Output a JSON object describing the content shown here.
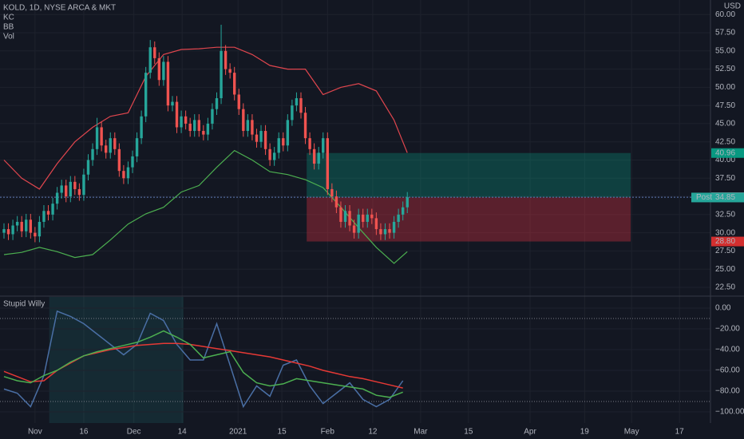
{
  "chart_data": [
    {
      "type": "candlestick",
      "title": "KOLD, 1D, NYSE ARCA & MKT",
      "indicators": [
        "KC",
        "BB",
        "Vol"
      ],
      "currency": "USD",
      "up_color": "#26a69a",
      "down_color": "#ef5350",
      "open": [
        30.0,
        30.5,
        29.8,
        31.0,
        31.5,
        30.2,
        31.8,
        30.0,
        29.5,
        31.5,
        33.0,
        32.5,
        34.0,
        35.5,
        36.5,
        35.0,
        37.0,
        36.0,
        35.2,
        38.0,
        40.0,
        41.5,
        44.5,
        42.0,
        41.0,
        43.0,
        41.5,
        38.5,
        37.5,
        39.0,
        40.5,
        43.0,
        46.0,
        52.0,
        55.5,
        54.0,
        51.0,
        53.5,
        47.5,
        48.0,
        44.5,
        46.0,
        45.0,
        44.0,
        45.5,
        44.0,
        43.5,
        45.0,
        47.0,
        48.5,
        55.0,
        52.5,
        52.0,
        49.0,
        47.0,
        44.0,
        45.5,
        43.5,
        42.5,
        44.0,
        41.5,
        40.0,
        41.0,
        43.0,
        42.0,
        45.5,
        47.5,
        48.5,
        46.5,
        43.0,
        41.5,
        39.5,
        41.0,
        43.0,
        36.0,
        35.0,
        33.5,
        31.5,
        33.0,
        31.0,
        30.0,
        32.5,
        31.5,
        32.5,
        32.0,
        30.5,
        29.8,
        30.5,
        30.0,
        31.5,
        32.5,
        33.5
      ],
      "high": [
        31.3,
        31.3,
        31.8,
        32.3,
        32.3,
        32.6,
        32.6,
        30.8,
        32.3,
        33.8,
        33.8,
        34.8,
        36.3,
        37.3,
        37.3,
        37.8,
        37.8,
        36.8,
        38.8,
        40.8,
        42.3,
        45.8,
        45.3,
        42.8,
        43.8,
        43.8,
        42.3,
        39.3,
        39.8,
        41.3,
        43.8,
        46.8,
        52.8,
        56.5,
        56.3,
        54.8,
        54.3,
        54.3,
        48.8,
        48.8,
        46.8,
        46.8,
        45.8,
        46.3,
        46.3,
        44.8,
        45.8,
        47.8,
        49.3,
        58.6,
        55.8,
        53.3,
        52.8,
        49.8,
        47.8,
        46.3,
        46.3,
        44.3,
        44.8,
        44.8,
        42.3,
        41.8,
        43.8,
        43.8,
        46.3,
        48.3,
        49.3,
        49.3,
        47.3,
        43.8,
        42.3,
        41.8,
        43.8,
        43.8,
        36.8,
        35.8,
        34.3,
        33.8,
        33.8,
        31.8,
        33.3,
        33.3,
        33.3,
        33.3,
        32.8,
        31.3,
        31.3,
        31.3,
        32.3,
        33.3,
        34.3,
        35.6
      ],
      "low": [
        29.2,
        29.0,
        29.0,
        30.2,
        29.4,
        29.4,
        29.2,
        28.7,
        28.7,
        30.7,
        31.7,
        31.7,
        33.2,
        34.7,
        34.2,
        34.2,
        35.2,
        34.4,
        34.4,
        37.2,
        39.2,
        40.7,
        41.2,
        40.2,
        40.2,
        40.7,
        37.7,
        36.7,
        36.7,
        38.2,
        39.7,
        42.2,
        45.2,
        51.2,
        53.2,
        50.2,
        50.2,
        46.7,
        46.7,
        43.7,
        43.7,
        44.2,
        43.2,
        43.2,
        43.2,
        42.7,
        42.7,
        44.2,
        46.2,
        47.7,
        51.7,
        51.2,
        48.2,
        46.2,
        43.2,
        43.2,
        42.7,
        41.7,
        41.7,
        40.7,
        39.2,
        39.2,
        40.2,
        41.2,
        41.2,
        44.7,
        46.7,
        45.7,
        42.2,
        40.7,
        38.7,
        38.7,
        40.2,
        35.2,
        34.2,
        32.7,
        30.7,
        30.7,
        30.2,
        29.2,
        29.2,
        30.7,
        30.7,
        31.2,
        29.7,
        29.0,
        29.0,
        29.2,
        29.2,
        30.7,
        31.7,
        32.7
      ],
      "close": [
        30.5,
        29.8,
        31.0,
        31.5,
        30.2,
        31.8,
        30.0,
        29.5,
        31.5,
        33.0,
        32.5,
        34.0,
        35.5,
        36.5,
        35.0,
        37.0,
        36.0,
        35.2,
        38.0,
        40.0,
        41.5,
        44.5,
        42.0,
        41.0,
        43.0,
        41.5,
        38.5,
        37.5,
        39.0,
        40.5,
        43.0,
        46.0,
        52.0,
        55.5,
        54.0,
        51.0,
        53.5,
        47.5,
        48.0,
        44.5,
        46.0,
        45.0,
        44.0,
        45.5,
        44.0,
        43.5,
        45.0,
        47.0,
        48.5,
        55.0,
        52.5,
        52.0,
        49.0,
        47.0,
        44.0,
        45.5,
        43.5,
        42.5,
        44.0,
        41.5,
        40.0,
        41.0,
        43.0,
        42.0,
        45.5,
        47.5,
        48.5,
        46.5,
        43.0,
        41.5,
        39.5,
        41.0,
        43.0,
        36.0,
        35.0,
        33.5,
        31.5,
        33.0,
        31.0,
        30.0,
        32.5,
        31.5,
        32.5,
        32.0,
        30.5,
        29.8,
        30.5,
        30.0,
        31.5,
        32.5,
        33.5,
        34.88
      ],
      "bands": [
        {
          "color": "#e0464e",
          "x": [
            0,
            4,
            8,
            12,
            16,
            20,
            24,
            28,
            32,
            36,
            40,
            44,
            48,
            52,
            56,
            60,
            64,
            68,
            72,
            76,
            80,
            84,
            88,
            91
          ],
          "values": [
            40.0,
            37.5,
            36.0,
            39.5,
            42.5,
            44.5,
            46.0,
            46.5,
            51.5,
            54.5,
            55.2,
            55.3,
            55.5,
            55.5,
            54.5,
            53.0,
            52.5,
            52.5,
            49.0,
            50.0,
            50.5,
            49.5,
            45.5,
            41.0
          ]
        },
        {
          "color": "#4caf50",
          "x": [
            0,
            4,
            8,
            12,
            16,
            20,
            24,
            28,
            32,
            36,
            40,
            44,
            48,
            52,
            56,
            60,
            64,
            68,
            72,
            76,
            80,
            84,
            88,
            91
          ],
          "values": [
            27.0,
            27.3,
            28.0,
            27.4,
            26.6,
            27.0,
            29.0,
            31.2,
            32.6,
            33.5,
            35.6,
            36.5,
            39.0,
            41.3,
            40.0,
            38.4,
            38.0,
            37.3,
            36.2,
            33.5,
            30.7,
            28.0,
            25.8,
            27.4
          ]
        }
      ],
      "position": {
        "start": 68.3,
        "end": 141.4,
        "target": 40.96,
        "entry": 34.88,
        "stop": {
          "value": 28.8,
          "label": "28.80"
        }
      },
      "post": {
        "label": "Post",
        "value": 34.85
      },
      "xlim": [
        -0.9,
        159.4
      ],
      "ylim": [
        21.4,
        62.0
      ],
      "xticks": [
        {
          "value": 7,
          "label": "Nov"
        },
        {
          "value": 18,
          "label": "16"
        },
        {
          "value": 29.3,
          "label": "Dec"
        },
        {
          "value": 40.2,
          "label": "14"
        },
        {
          "value": 52.8,
          "label": "2021"
        },
        {
          "value": 62.7,
          "label": "15"
        },
        {
          "value": 73,
          "label": "Feb"
        },
        {
          "value": 83.2,
          "label": "12"
        },
        {
          "value": 94,
          "label": "Mar"
        },
        {
          "value": 104.8,
          "label": "15"
        },
        {
          "value": 118.7,
          "label": "Apr"
        },
        {
          "value": 131,
          "label": "19"
        },
        {
          "value": 141.6,
          "label": "May"
        },
        {
          "value": 152.4,
          "label": "17"
        }
      ],
      "yticks": [
        {
          "value": 22.5,
          "label": "22.50"
        },
        {
          "value": 25,
          "label": "25.00"
        },
        {
          "value": 27.5,
          "label": "27.50"
        },
        {
          "value": 30,
          "label": "30.00"
        },
        {
          "value": 32.5,
          "label": "32.50"
        },
        {
          "value": 35,
          "label": "35.00"
        },
        {
          "value": 37.5,
          "label": "37.50"
        },
        {
          "value": 40,
          "label": "40.00"
        },
        {
          "value": 42.5,
          "label": "42.50"
        },
        {
          "value": 45,
          "label": "45.00"
        },
        {
          "value": 47.5,
          "label": "47.50"
        },
        {
          "value": 50,
          "label": "50.00"
        },
        {
          "value": 52.5,
          "label": "52.50"
        },
        {
          "value": 55,
          "label": "55.00"
        },
        {
          "value": 57.5,
          "label": "57.50"
        },
        {
          "value": 60,
          "label": "60.00"
        }
      ]
    },
    {
      "type": "line",
      "title": "Stupid Willy",
      "x": [
        0,
        3,
        6,
        9,
        12,
        15,
        18,
        21,
        24,
        27,
        30,
        33,
        36,
        39,
        42,
        45,
        48,
        51,
        54,
        57,
        60,
        63,
        66,
        69,
        72,
        75,
        78,
        81,
        84,
        87,
        90
      ],
      "series": [
        {
          "color": "#4a6fa5",
          "values": [
            -78,
            -82,
            -95,
            -65,
            -3,
            -8,
            -15,
            -25,
            -35,
            -45,
            -35,
            -5,
            -12,
            -35,
            -50,
            -50,
            -15,
            -55,
            -95,
            -75,
            -85,
            -55,
            -50,
            -75,
            -92,
            -82,
            -72,
            -88,
            -95,
            -88,
            -70
          ]
        },
        {
          "color": "#e53935",
          "values": [
            -61,
            -66,
            -71,
            -70,
            -60,
            -53,
            -46,
            -43,
            -40,
            -38,
            -36,
            -35,
            -34,
            -34,
            -35,
            -37,
            -39,
            -41,
            -43,
            -45,
            -47,
            -50,
            -53,
            -56,
            -60,
            -63,
            -66,
            -68,
            -71,
            -74,
            -77
          ]
        },
        {
          "color": "#4caf50",
          "values": [
            -66,
            -70,
            -72,
            -65,
            -60,
            -52,
            -46,
            -42,
            -39,
            -36,
            -33,
            -28,
            -22,
            -28,
            -35,
            -48,
            -45,
            -42,
            -62,
            -72,
            -75,
            -73,
            -68,
            -70,
            -72,
            -74,
            -76,
            -78,
            -84,
            -86,
            -81
          ]
        }
      ],
      "highlight": [
        10.2,
        40.5
      ],
      "levels": [
        -10,
        -90
      ],
      "xlim": [
        -0.9,
        159.4
      ],
      "ylim": [
        -110.8,
        10.8
      ],
      "yticks": [
        {
          "value": 0,
          "label": "0.00"
        },
        {
          "value": -20,
          "label": "−20.00"
        },
        {
          "value": -40,
          "label": "−40.00"
        },
        {
          "value": -60,
          "label": "−60.00"
        },
        {
          "value": -80,
          "label": "−80.00"
        },
        {
          "value": -100,
          "label": "−100.00"
        }
      ]
    }
  ]
}
